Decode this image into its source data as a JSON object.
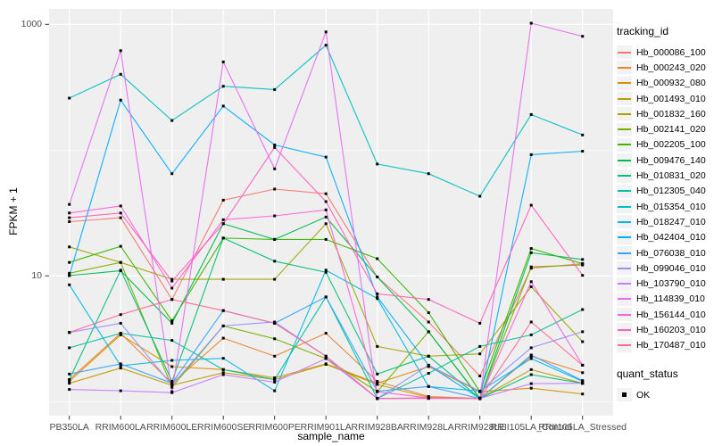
{
  "figure": {
    "background": "#ffffff",
    "panel_background": "#efefef",
    "grid_color": "#ffffff",
    "tick_mark_color": "#333333",
    "tick_label_color": "#4d4d4d",
    "point_color": "#000000"
  },
  "axes": {
    "x_title": "sample_name",
    "y_title": "FPKM + 1",
    "y_tick_labels": [
      "1000",
      "10"
    ]
  },
  "legend": {
    "tracking_title": "tracking_id",
    "quant_title": "quant_status",
    "quant_ok_label": "OK"
  },
  "chart_data": {
    "type": "line",
    "title": "",
    "xlabel": "sample_name",
    "ylabel": "FPKM + 1",
    "yscale": "log10",
    "ylim": [
      1,
      1100
    ],
    "y_major_breaks": [
      10,
      1000
    ],
    "y_minor_breaks": [
      1,
      100
    ],
    "grid": true,
    "legend_position": "right",
    "marker": "black-square",
    "categories": [
      "PB350LA",
      "RRIM600LA",
      "RRIM600LE",
      "RRIM600SE",
      "RRIM600PE",
      "RRIM901LA",
      "RRIM928BA",
      "RRIM928LA",
      "RRIM928LE",
      "RRII105LA_Control",
      "RRII105LA_Stressed"
    ],
    "series": [
      {
        "name": "Hb_000086_100",
        "color": "#F8766D",
        "values": [
          27,
          29,
          6.5,
          40,
          49,
          45,
          9.8,
          4.3,
          1.6,
          11.5,
          12.5
        ]
      },
      {
        "name": "Hb_000243_020",
        "color": "#EA8331",
        "values": [
          1.5,
          3.5,
          1.4,
          3.2,
          2.3,
          3.5,
          1.45,
          1.1,
          1.06,
          2.3,
          1.7
        ]
      },
      {
        "name": "Hb_000932_080",
        "color": "#D89000",
        "values": [
          1.45,
          3.4,
          1.9,
          1.8,
          1.55,
          2.0,
          1.4,
          1.9,
          1.2,
          1.28,
          1.15
        ]
      },
      {
        "name": "Hb_001493_010",
        "color": "#C09B00",
        "values": [
          1.4,
          1.85,
          1.35,
          1.7,
          1.5,
          1.98,
          1.37,
          1.08,
          1.06,
          1.8,
          1.4
        ]
      },
      {
        "name": "Hb_001832_160",
        "color": "#A3A500",
        "values": [
          17,
          12.8,
          9.4,
          9.4,
          9.4,
          26,
          2.75,
          2.3,
          2.4,
          8.2,
          3.0
        ]
      },
      {
        "name": "Hb_002141_020",
        "color": "#7CAE00",
        "values": [
          10.5,
          12.8,
          1.3,
          4.0,
          3.16,
          2.2,
          1.2,
          3.6,
          1.07,
          11.8,
          12.2
        ]
      },
      {
        "name": "Hb_002205_100",
        "color": "#39B600",
        "values": [
          12.8,
          17.2,
          4.4,
          20,
          19.5,
          19.5,
          13.7,
          5.1,
          1.2,
          16.5,
          12.5
        ]
      },
      {
        "name": "Hb_009476_140",
        "color": "#00BB4E",
        "values": [
          10.05,
          11,
          4.2,
          26,
          19.5,
          29.4,
          9.8,
          3.6,
          1.06,
          15.3,
          13.5
        ]
      },
      {
        "name": "Hb_010831_020",
        "color": "#00C079",
        "values": [
          1.5,
          11.1,
          1.45,
          20,
          13.1,
          10.7,
          1.66,
          2.3,
          1.06,
          1.64,
          1.4
        ]
      },
      {
        "name": "Hb_012305_040",
        "color": "#00C19F",
        "values": [
          2.68,
          3.5,
          3.07,
          1.8,
          1.5,
          6.8,
          1.06,
          1.68,
          2.75,
          3.4,
          5.4
        ]
      },
      {
        "name": "Hb_015354_010",
        "color": "#00BFC4",
        "values": [
          259,
          401,
          172,
          322,
          303,
          682,
          77.5,
          65,
          43,
          192,
          132
        ]
      },
      {
        "name": "Hb_018247_010",
        "color": "#00B8E7",
        "values": [
          8.5,
          1.93,
          2.13,
          2.21,
          1.22,
          11.1,
          6.6,
          1.32,
          1.21,
          2.2,
          1.45
        ]
      },
      {
        "name": "Hb_042404_010",
        "color": "#00ACFC",
        "values": [
          10.05,
          250,
          65,
          224,
          110,
          88,
          6.8,
          1.95,
          1.06,
          92,
          98
        ]
      },
      {
        "name": "Hb_076038_010",
        "color": "#35A2FF",
        "values": [
          1.66,
          2.0,
          1.4,
          5.3,
          4.2,
          6.8,
          1.21,
          1.32,
          1.06,
          2.35,
          1.47
        ]
      },
      {
        "name": "Hb_099046_010",
        "color": "#9590FF",
        "values": [
          3.55,
          4.2,
          1.35,
          4.0,
          4.3,
          2.3,
          1.06,
          1.95,
          1.21,
          2.68,
          3.6
        ]
      },
      {
        "name": "Hb_103790_010",
        "color": "#C77CFF",
        "values": [
          1.25,
          1.22,
          1.18,
          1.64,
          1.43,
          2.2,
          1.06,
          1.07,
          1.06,
          1.39,
          1.4
        ]
      },
      {
        "name": "Hb_114839_010",
        "color": "#E76BF3",
        "values": [
          37,
          618,
          1.2,
          503,
          71,
          871,
          1.06,
          1.06,
          1.06,
          1021,
          803
        ]
      },
      {
        "name": "Hb_156144_010",
        "color": "#FA62DB",
        "values": [
          31.6,
          36,
          8.0,
          28,
          30,
          33.5,
          1.2,
          1.07,
          1.06,
          9.0,
          1.95
        ]
      },
      {
        "name": "Hb_160203_010",
        "color": "#FF62BC",
        "values": [
          29,
          31.6,
          9.1,
          26,
          105,
          39,
          7.2,
          6.5,
          4.2,
          36.5,
          10.1
        ]
      },
      {
        "name": "Hb_170487_010",
        "color": "#FF6A98",
        "values": [
          3.55,
          4.92,
          6.5,
          5.3,
          4.2,
          2.3,
          1.06,
          1.07,
          1.06,
          4.3,
          1.95
        ]
      }
    ]
  }
}
